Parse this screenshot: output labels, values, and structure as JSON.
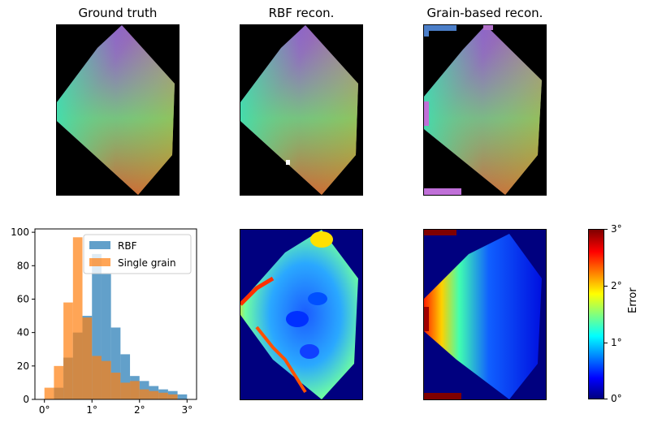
{
  "titles": {
    "gt": "Ground truth",
    "rbf": "RBF recon.",
    "grain": "Grain-based recon."
  },
  "colorbar": {
    "label": "Error",
    "ticks": [
      "3°",
      "2°",
      "1°",
      "0°"
    ],
    "range": [
      0,
      3
    ],
    "colormap": "jet"
  },
  "colors": {
    "rbf": "#1f77b4",
    "single_grain": "#ff7f0e",
    "background_map": "#000000",
    "error_background": "#00007f"
  },
  "chart_data": {
    "type": "bar",
    "histtype": "overlapping-histogram",
    "xlim": [
      -0.2,
      3.2
    ],
    "ylim": [
      0,
      102
    ],
    "xticks": [
      0,
      1,
      2,
      3
    ],
    "xtick_labels": [
      "0°",
      "1°",
      "2°",
      "3°"
    ],
    "yticks": [
      0,
      20,
      40,
      60,
      80,
      100
    ],
    "ytick_labels": [
      "0",
      "20",
      "40",
      "60",
      "80",
      "100"
    ],
    "legend_position": "top-right",
    "bin_edges": [
      0.0,
      0.2,
      0.4,
      0.6,
      0.8,
      1.0,
      1.2,
      1.4,
      1.6,
      1.8,
      2.0,
      2.2,
      2.4,
      2.6,
      2.8,
      3.0
    ],
    "series": [
      {
        "name": "RBF",
        "values": [
          0,
          7,
          25,
          40,
          50,
          87,
          75,
          43,
          27,
          14,
          11,
          8,
          6,
          5,
          3
        ]
      },
      {
        "name": "Single grain",
        "values": [
          7,
          20,
          58,
          97,
          49,
          26,
          23,
          16,
          10,
          11,
          6,
          5,
          4,
          3,
          0
        ]
      }
    ]
  }
}
